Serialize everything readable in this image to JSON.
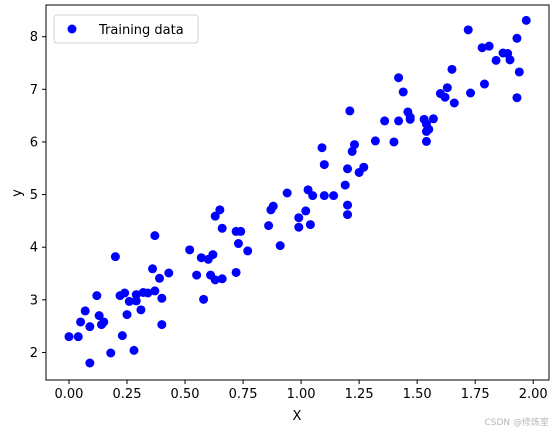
{
  "chart_data": {
    "type": "scatter",
    "xlabel": "X",
    "ylabel": "y",
    "xlim": [
      -0.099,
      2.068
    ],
    "ylim": [
      1.477,
      8.602
    ],
    "xticks": [
      0.0,
      0.25,
      0.5,
      0.75,
      1.0,
      1.25,
      1.5,
      1.75,
      2.0
    ],
    "xtick_labels": [
      "0.00",
      "0.25",
      "0.50",
      "0.75",
      "1.00",
      "1.25",
      "1.50",
      "1.75",
      "2.00"
    ],
    "yticks": [
      2,
      3,
      4,
      5,
      6,
      7,
      8
    ],
    "ytick_labels": [
      "2",
      "3",
      "4",
      "5",
      "6",
      "7",
      "8"
    ],
    "grid": false,
    "legend": {
      "position": "top-left"
    },
    "series": [
      {
        "name": "Training data",
        "color": "#0000ff",
        "marker": "circle",
        "x": [
          0.0,
          0.04,
          0.05,
          0.07,
          0.09,
          0.09,
          0.12,
          0.13,
          0.14,
          0.15,
          0.18,
          0.2,
          0.22,
          0.23,
          0.24,
          0.25,
          0.26,
          0.28,
          0.29,
          0.29,
          0.31,
          0.32,
          0.34,
          0.36,
          0.37,
          0.37,
          0.39,
          0.4,
          0.4,
          0.43,
          0.52,
          0.55,
          0.57,
          0.58,
          0.6,
          0.61,
          0.62,
          0.63,
          0.63,
          0.65,
          0.66,
          0.66,
          0.72,
          0.72,
          0.73,
          0.74,
          0.77,
          0.86,
          0.87,
          0.88,
          0.91,
          0.94,
          0.99,
          0.99,
          1.02,
          1.03,
          1.04,
          1.05,
          1.09,
          1.1,
          1.1,
          1.14,
          1.19,
          1.2,
          1.2,
          1.2,
          1.21,
          1.22,
          1.23,
          1.25,
          1.27,
          1.32,
          1.36,
          1.4,
          1.42,
          1.42,
          1.44,
          1.46,
          1.47,
          1.47,
          1.53,
          1.54,
          1.54,
          1.54,
          1.55,
          1.57,
          1.6,
          1.62,
          1.63,
          1.65,
          1.66,
          1.72,
          1.73,
          1.78,
          1.79,
          1.81,
          1.84,
          1.87,
          1.89,
          1.9,
          1.93,
          1.93,
          1.94,
          1.97
        ],
        "y": [
          2.3,
          2.3,
          2.58,
          2.79,
          1.8,
          2.49,
          3.08,
          2.7,
          2.53,
          2.58,
          1.99,
          3.82,
          3.08,
          2.32,
          3.13,
          2.72,
          2.97,
          2.04,
          2.98,
          3.1,
          2.81,
          3.14,
          3.13,
          3.59,
          3.17,
          4.22,
          3.41,
          2.53,
          3.03,
          3.51,
          3.95,
          3.47,
          3.8,
          3.01,
          3.77,
          3.47,
          3.86,
          4.59,
          3.38,
          4.71,
          4.36,
          3.4,
          4.3,
          3.52,
          4.07,
          4.3,
          3.93,
          4.41,
          4.71,
          4.78,
          4.03,
          5.03,
          4.38,
          4.56,
          4.69,
          5.09,
          4.43,
          4.98,
          5.89,
          5.57,
          4.98,
          4.98,
          5.18,
          4.62,
          4.8,
          5.49,
          6.59,
          5.82,
          5.95,
          5.42,
          5.52,
          6.02,
          6.4,
          6.0,
          7.22,
          6.4,
          6.95,
          6.57,
          6.47,
          6.43,
          6.43,
          6.34,
          6.2,
          6.01,
          6.24,
          6.44,
          6.92,
          6.85,
          7.03,
          7.38,
          6.74,
          8.13,
          6.93,
          7.79,
          7.1,
          7.82,
          7.55,
          7.69,
          7.68,
          7.56,
          7.97,
          6.84,
          7.33,
          8.31
        ]
      }
    ]
  },
  "watermark": "CSDN @修炼室"
}
